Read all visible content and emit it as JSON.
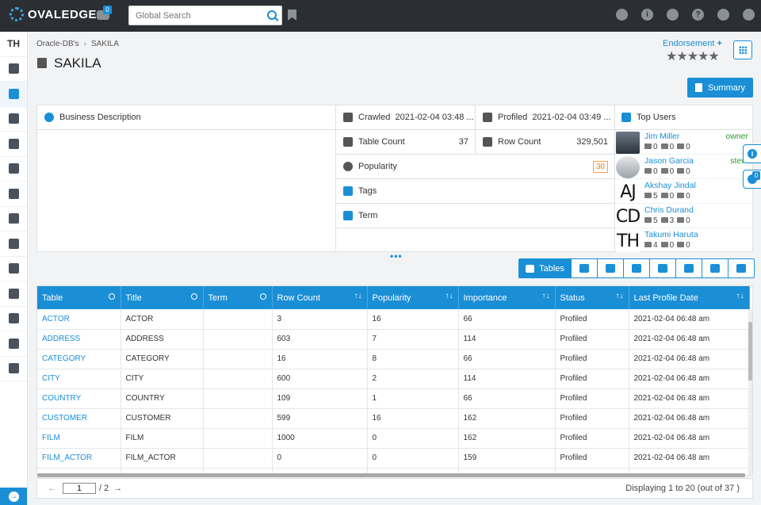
{
  "app": {
    "logo_text": "OVALEDGE",
    "message_badge": "0"
  },
  "search": {
    "placeholder": "Global Search"
  },
  "sidebar": {
    "top_label": "TH"
  },
  "breadcrumb": {
    "parent": "Oracle-DB's",
    "current": "SAKILA"
  },
  "page_title": "SAKILA",
  "endorsement": {
    "label": "Endorsement",
    "plus": "+",
    "stars": "★★★★★"
  },
  "summary_button": "Summary",
  "details": {
    "business_description": "Business Description",
    "crawled_label": "Crawled",
    "crawled_value": "2021-02-04 03:48 ...",
    "profiled_label": "Profiled",
    "profiled_value": "2021-02-04 03:49 ...",
    "table_count_label": "Table Count",
    "table_count_value": "37",
    "row_count_label": "Row Count",
    "row_count_value": "329,501",
    "popularity_label": "Popularity",
    "popularity_value": "30",
    "tags_label": "Tags",
    "term_label": "Term"
  },
  "top_users": {
    "title": "Top Users",
    "users": [
      {
        "name": "Jim Miller",
        "role": "owner",
        "views": "0",
        "docs": "0",
        "comments": "0",
        "avatar": ""
      },
      {
        "name": "Jason Garcia",
        "role": "steward",
        "views": "0",
        "docs": "0",
        "comments": "0",
        "avatar": ""
      },
      {
        "name": "Akshay Jindal",
        "role": "",
        "views": "5",
        "docs": "0",
        "comments": "0",
        "avatar": "AJ"
      },
      {
        "name": "Chris Durand",
        "role": "",
        "views": "5",
        "docs": "3",
        "comments": "0",
        "avatar": "CD"
      },
      {
        "name": "Takumi Haruta",
        "role": "",
        "views": "4",
        "docs": "0",
        "comments": "0",
        "avatar": "TH"
      }
    ]
  },
  "side_tabs": {
    "info_badge": "0"
  },
  "expand_dots": "•••",
  "toolbar": {
    "tables_label": "Tables"
  },
  "table": {
    "columns": [
      "Table",
      "Title",
      "Term",
      "Row Count",
      "Popularity",
      "Importance",
      "Status",
      "Last Profile Date"
    ],
    "rows": [
      [
        "ACTOR",
        "ACTOR",
        "",
        "3",
        "16",
        "66",
        "Profiled",
        "2021-02-04 06:48 am"
      ],
      [
        "ADDRESS",
        "ADDRESS",
        "",
        "603",
        "7",
        "114",
        "Profiled",
        "2021-02-04 06:48 am"
      ],
      [
        "CATEGORY",
        "CATEGORY",
        "",
        "16",
        "8",
        "66",
        "Profiled",
        "2021-02-04 06:48 am"
      ],
      [
        "CITY",
        "CITY",
        "",
        "600",
        "2",
        "114",
        "Profiled",
        "2021-02-04 06:48 am"
      ],
      [
        "COUNTRY",
        "COUNTRY",
        "",
        "109",
        "1",
        "66",
        "Profiled",
        "2021-02-04 06:48 am"
      ],
      [
        "CUSTOMER",
        "CUSTOMER",
        "",
        "599",
        "16",
        "162",
        "Profiled",
        "2021-02-04 06:48 am"
      ],
      [
        "FILM",
        "FILM",
        "",
        "1000",
        "0",
        "162",
        "Profiled",
        "2021-02-04 06:48 am"
      ],
      [
        "FILM_ACTOR",
        "FILM_ACTOR",
        "",
        "0",
        "0",
        "159",
        "Profiled",
        "2021-02-04 06:48 am"
      ],
      [
        "",
        "",
        "",
        "",
        "",
        "",
        "",
        ""
      ]
    ]
  },
  "pager": {
    "page": "1",
    "total_pages": "/ 2",
    "display": "Displaying 1 to 20 (out of 37 )"
  },
  "colors": {
    "accent": "#1a8fd6",
    "topbar": "#2b2f33"
  }
}
